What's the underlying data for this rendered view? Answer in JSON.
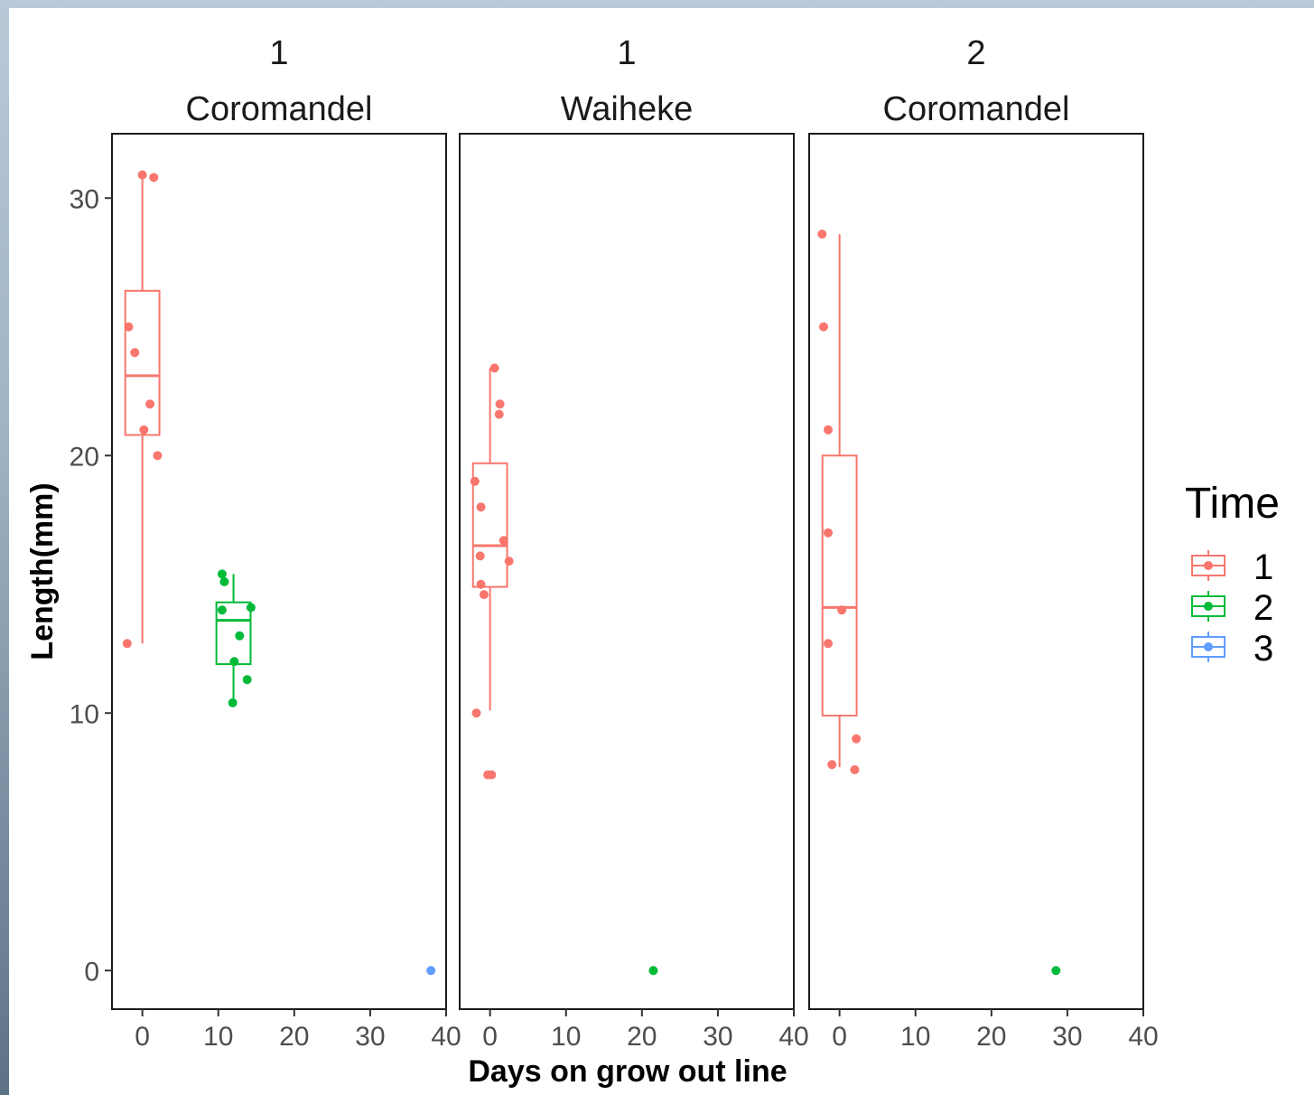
{
  "chart_data": {
    "type": "box",
    "xlabel": "Days on grow out line",
    "ylabel": "Length(mm)",
    "xlim": [
      -4,
      40
    ],
    "ylim": [
      -1.5,
      32.5
    ],
    "x_ticks": [
      0,
      10,
      20,
      30,
      40
    ],
    "y_ticks": [
      0,
      10,
      20,
      30
    ],
    "grid": false,
    "legend": {
      "title": "Time",
      "position": "right",
      "entries": [
        {
          "label": "1",
          "color": "#F8766D"
        },
        {
          "label": "2",
          "color": "#00BA38"
        },
        {
          "label": "3",
          "color": "#619CFF"
        }
      ]
    },
    "panels": [
      {
        "strip": [
          "1",
          "Coromandel"
        ],
        "boxes": [
          {
            "time": "1",
            "x": 0,
            "whisker_low": 12.7,
            "q1": 20.8,
            "median": 23.1,
            "q3": 26.4,
            "whisker_high": 30.8
          },
          {
            "time": "2",
            "x": 12,
            "whisker_low": 10.4,
            "q1": 11.9,
            "median": 13.6,
            "q3": 14.3,
            "whisker_high": 15.4
          }
        ],
        "points": [
          {
            "time": "1",
            "x": 0.0,
            "y": 30.9
          },
          {
            "time": "1",
            "x": 1.5,
            "y": 30.8
          },
          {
            "time": "1",
            "x": -1.8,
            "y": 25.0
          },
          {
            "time": "1",
            "x": -1.0,
            "y": 24.0
          },
          {
            "time": "1",
            "x": 1.0,
            "y": 22.0
          },
          {
            "time": "1",
            "x": 0.2,
            "y": 21.0
          },
          {
            "time": "1",
            "x": 2.0,
            "y": 20.0
          },
          {
            "time": "1",
            "x": -2.0,
            "y": 12.7
          },
          {
            "time": "2",
            "x": 10.5,
            "y": 15.4
          },
          {
            "time": "2",
            "x": 10.8,
            "y": 15.1
          },
          {
            "time": "2",
            "x": 10.5,
            "y": 14.0
          },
          {
            "time": "2",
            "x": 14.3,
            "y": 14.1
          },
          {
            "time": "2",
            "x": 12.8,
            "y": 13.0
          },
          {
            "time": "2",
            "x": 12.1,
            "y": 12.0
          },
          {
            "time": "2",
            "x": 13.8,
            "y": 11.3
          },
          {
            "time": "2",
            "x": 11.9,
            "y": 10.4
          },
          {
            "time": "3",
            "x": 38.0,
            "y": 0.0
          }
        ]
      },
      {
        "strip": [
          "1",
          "Waiheke"
        ],
        "boxes": [
          {
            "time": "1",
            "x": 0,
            "whisker_low": 10.1,
            "q1": 14.9,
            "median": 16.5,
            "q3": 19.7,
            "whisker_high": 23.4
          }
        ],
        "points": [
          {
            "time": "1",
            "x": 0.6,
            "y": 23.4
          },
          {
            "time": "1",
            "x": 1.3,
            "y": 22.0
          },
          {
            "time": "1",
            "x": 1.2,
            "y": 21.6
          },
          {
            "time": "1",
            "x": -2.0,
            "y": 19.0
          },
          {
            "time": "1",
            "x": -1.2,
            "y": 18.0
          },
          {
            "time": "1",
            "x": 1.8,
            "y": 16.7
          },
          {
            "time": "1",
            "x": -1.3,
            "y": 16.1
          },
          {
            "time": "1",
            "x": 2.5,
            "y": 15.9
          },
          {
            "time": "1",
            "x": -1.2,
            "y": 15.0
          },
          {
            "time": "1",
            "x": -0.8,
            "y": 14.6
          },
          {
            "time": "1",
            "x": -1.8,
            "y": 10.0
          },
          {
            "time": "1",
            "x": -0.3,
            "y": 7.6
          },
          {
            "time": "1",
            "x": 0.2,
            "y": 7.6
          },
          {
            "time": "2",
            "x": 21.5,
            "y": 0.0
          }
        ]
      },
      {
        "strip": [
          "2",
          "Coromandel"
        ],
        "boxes": [
          {
            "time": "1",
            "x": 0,
            "whisker_low": 7.9,
            "q1": 9.9,
            "median": 14.1,
            "q3": 20.0,
            "whisker_high": 28.6
          }
        ],
        "points": [
          {
            "time": "1",
            "x": -2.3,
            "y": 28.6
          },
          {
            "time": "1",
            "x": -2.1,
            "y": 25.0
          },
          {
            "time": "1",
            "x": -1.5,
            "y": 21.0
          },
          {
            "time": "1",
            "x": -1.5,
            "y": 17.0
          },
          {
            "time": "1",
            "x": 0.3,
            "y": 14.0
          },
          {
            "time": "1",
            "x": -1.5,
            "y": 12.7
          },
          {
            "time": "1",
            "x": 2.2,
            "y": 9.0
          },
          {
            "time": "1",
            "x": -1.0,
            "y": 8.0
          },
          {
            "time": "1",
            "x": 2.0,
            "y": 7.8
          },
          {
            "time": "2",
            "x": 28.5,
            "y": 0.0
          }
        ]
      }
    ]
  }
}
